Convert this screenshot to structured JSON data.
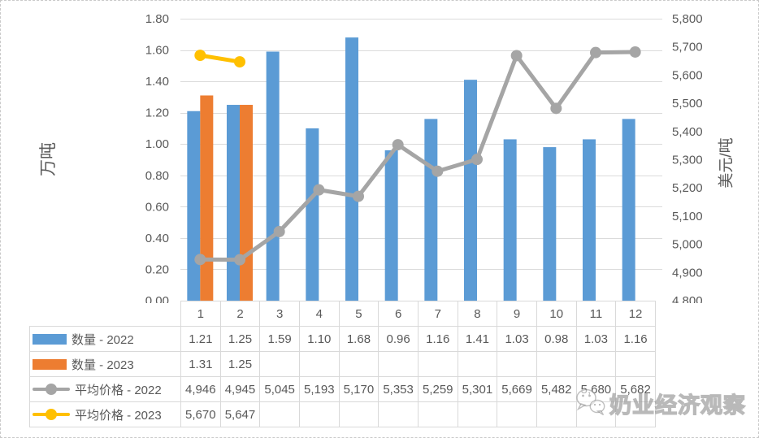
{
  "watermark": {
    "text": "奶业经济观察",
    "logo": "wechat-logo"
  },
  "colors": {
    "bar_2022": "#5B9BD5",
    "bar_2023": "#ED7D31",
    "line_2022": "#A5A5A5",
    "line_2023": "#FFC000",
    "grid": "#DBDBDB",
    "axis_text": "#595959",
    "table_border": "#D9D9D9"
  },
  "chart_data": {
    "type": "combo",
    "title": "",
    "categories": [
      "1",
      "2",
      "3",
      "4",
      "5",
      "6",
      "7",
      "8",
      "9",
      "10",
      "11",
      "12"
    ],
    "series": [
      {
        "name": "数量 - 2022",
        "type": "bar",
        "axis": "left",
        "color": "#5B9BD5",
        "values": [
          1.21,
          1.25,
          1.59,
          1.1,
          1.68,
          0.96,
          1.16,
          1.41,
          1.03,
          0.98,
          1.03,
          1.16
        ],
        "display": [
          "1.21",
          "1.25",
          "1.59",
          "1.10",
          "1.68",
          "0.96",
          "1.16",
          "1.41",
          "1.03",
          "0.98",
          "1.03",
          "1.16"
        ]
      },
      {
        "name": "数量 - 2023",
        "type": "bar",
        "axis": "left",
        "color": "#ED7D31",
        "values": [
          1.31,
          1.25,
          null,
          null,
          null,
          null,
          null,
          null,
          null,
          null,
          null,
          null
        ],
        "display": [
          "1.31",
          "1.25",
          "",
          "",
          "",
          "",
          "",
          "",
          "",
          "",
          "",
          ""
        ]
      },
      {
        "name": "平均价格 - 2022",
        "type": "line",
        "axis": "right",
        "color": "#A5A5A5",
        "values": [
          4946,
          4945,
          5045,
          5193,
          5170,
          5353,
          5259,
          5301,
          5669,
          5482,
          5680,
          5682
        ],
        "display": [
          "4,946",
          "4,945",
          "5,045",
          "5,193",
          "5,170",
          "5,353",
          "5,259",
          "5,301",
          "5,669",
          "5,482",
          "5,680",
          "5,682"
        ]
      },
      {
        "name": "平均价格 - 2023",
        "type": "line",
        "axis": "right",
        "color": "#FFC000",
        "values": [
          5670,
          5647,
          null,
          null,
          null,
          null,
          null,
          null,
          null,
          null,
          null,
          null
        ],
        "display": [
          "5,670",
          "5,647",
          "",
          "",
          "",
          "",
          "",
          "",
          "",
          "",
          "",
          ""
        ]
      }
    ],
    "left_axis": {
      "title": "万吨",
      "min": 0,
      "max": 1.8,
      "step": 0.2,
      "tick_labels": [
        "0.00",
        "0.20",
        "0.40",
        "0.60",
        "0.80",
        "1.00",
        "1.20",
        "1.40",
        "1.60",
        "1.80"
      ]
    },
    "right_axis": {
      "title": "美元/吨",
      "min": 4800,
      "max": 5800,
      "step": 100,
      "tick_labels": [
        "4,800",
        "4,900",
        "5,000",
        "5,100",
        "5,200",
        "5,300",
        "5,400",
        "5,500",
        "5,600",
        "5,700",
        "5,800"
      ]
    },
    "grid": true,
    "legend_position": "table-left"
  }
}
